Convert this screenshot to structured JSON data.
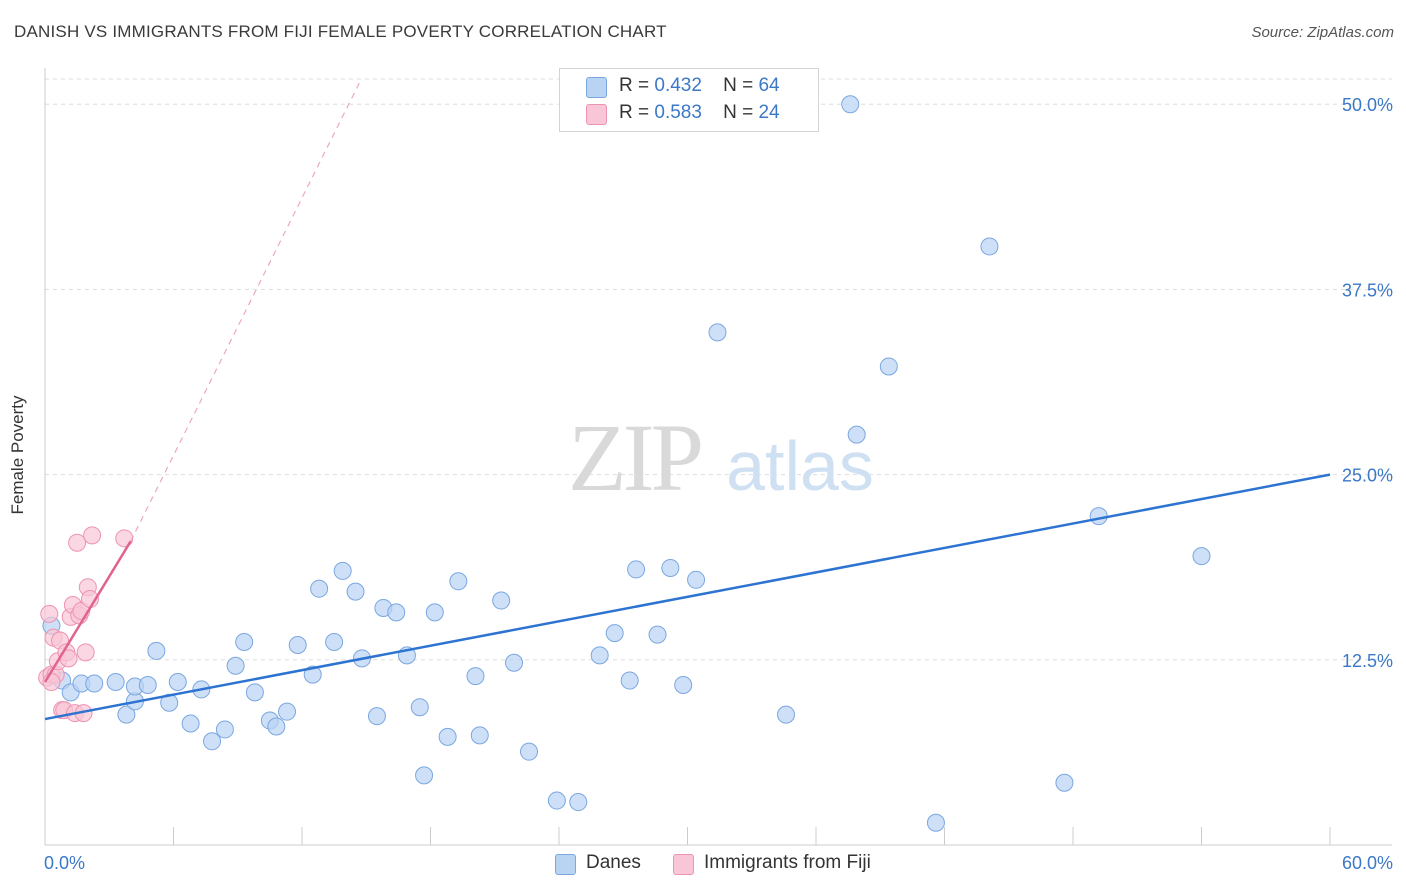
{
  "title": "DANISH VS IMMIGRANTS FROM FIJI FEMALE POVERTY CORRELATION CHART",
  "source": "Source: ZipAtlas.com",
  "watermark": {
    "zip": "ZIP",
    "atlas": "atlas"
  },
  "colors": {
    "danes_fill": "#b9d3f3",
    "danes_stroke": "#7aa7e0",
    "danes_line": "#2d73d2",
    "fiji_fill": "#f8c6d6",
    "fiji_stroke": "#ee93b2",
    "fiji_line": "#e0648f",
    "axis_label": "#3b78c7",
    "grid": "#dddddd"
  },
  "legend": {
    "rows": [
      {
        "r_label": "R =",
        "r_value": "0.432",
        "n_label": "N =",
        "n_value": "64"
      },
      {
        "r_label": "R =",
        "r_value": "0.583",
        "n_label": "N =",
        "n_value": "24"
      }
    ]
  },
  "bottom_legend": {
    "danes": "Danes",
    "fiji": "Immigrants from Fiji"
  },
  "chart_data": {
    "type": "scatter",
    "title": "DANISH VS IMMIGRANTS FROM FIJI FEMALE POVERTY CORRELATION CHART",
    "xlabel": "",
    "ylabel": "Female Poverty",
    "xlim": [
      0,
      60
    ],
    "ylim": [
      0,
      51.5
    ],
    "x_tick_labels": [
      "0.0%",
      "60.0%"
    ],
    "y_ticks": [
      12.5,
      25.0,
      37.5,
      50.0
    ],
    "y_tick_labels": [
      "12.5%",
      "25.0%",
      "37.5%",
      "50.0%"
    ],
    "grid": true,
    "legend_position": "top-center",
    "series": [
      {
        "name": "Danes",
        "r": 0.432,
        "n": 64,
        "trend": {
          "x": [
            0,
            60
          ],
          "y": [
            8.5,
            25.0
          ]
        },
        "points": [
          [
            0.3,
            14.8
          ],
          [
            0.8,
            11.1
          ],
          [
            1.2,
            10.3
          ],
          [
            1.7,
            10.9
          ],
          [
            2.3,
            10.9
          ],
          [
            3.3,
            11.0
          ],
          [
            3.8,
            8.8
          ],
          [
            4.2,
            9.7
          ],
          [
            4.2,
            10.7
          ],
          [
            4.8,
            10.8
          ],
          [
            5.2,
            13.1
          ],
          [
            5.8,
            9.6
          ],
          [
            6.2,
            11.0
          ],
          [
            6.8,
            8.2
          ],
          [
            7.3,
            10.5
          ],
          [
            7.8,
            7.0
          ],
          [
            8.4,
            7.8
          ],
          [
            8.9,
            12.1
          ],
          [
            9.3,
            13.7
          ],
          [
            9.8,
            10.3
          ],
          [
            10.5,
            8.4
          ],
          [
            10.8,
            8.0
          ],
          [
            11.3,
            9.0
          ],
          [
            11.8,
            13.5
          ],
          [
            12.5,
            11.5
          ],
          [
            12.8,
            17.3
          ],
          [
            13.5,
            13.7
          ],
          [
            13.9,
            18.5
          ],
          [
            14.5,
            17.1
          ],
          [
            14.8,
            12.6
          ],
          [
            15.5,
            8.7
          ],
          [
            15.8,
            16.0
          ],
          [
            16.4,
            15.7
          ],
          [
            16.9,
            12.8
          ],
          [
            17.5,
            9.3
          ],
          [
            17.7,
            4.7
          ],
          [
            18.2,
            15.7
          ],
          [
            18.8,
            7.3
          ],
          [
            19.3,
            17.8
          ],
          [
            20.1,
            11.4
          ],
          [
            20.3,
            7.4
          ],
          [
            21.3,
            16.5
          ],
          [
            21.9,
            12.3
          ],
          [
            22.6,
            6.3
          ],
          [
            23.9,
            3.0
          ],
          [
            24.9,
            2.9
          ],
          [
            25.9,
            12.8
          ],
          [
            26.6,
            14.3
          ],
          [
            27.3,
            11.1
          ],
          [
            27.6,
            18.6
          ],
          [
            28.6,
            14.2
          ],
          [
            29.2,
            18.7
          ],
          [
            29.8,
            10.8
          ],
          [
            30.4,
            17.9
          ],
          [
            31.4,
            34.6
          ],
          [
            34.6,
            8.8
          ],
          [
            37.6,
            50.0
          ],
          [
            37.9,
            27.7
          ],
          [
            39.4,
            32.3
          ],
          [
            41.6,
            1.5
          ],
          [
            44.1,
            40.4
          ],
          [
            47.6,
            4.2
          ],
          [
            49.2,
            22.2
          ],
          [
            54.0,
            19.5
          ]
        ]
      },
      {
        "name": "Immigrants from Fiji",
        "r": 0.583,
        "n": 24,
        "trend": {
          "x": [
            0,
            4.0
          ],
          "y": [
            11.0,
            20.5
          ]
        },
        "trend_extension": {
          "x": [
            4.0,
            14.7
          ],
          "y": [
            20.5,
            51.5
          ]
        },
        "points": [
          [
            0.1,
            11.3
          ],
          [
            0.2,
            15.6
          ],
          [
            0.3,
            11.5
          ],
          [
            0.4,
            14.0
          ],
          [
            0.5,
            11.5
          ],
          [
            0.6,
            12.4
          ],
          [
            0.7,
            13.8
          ],
          [
            0.8,
            9.1
          ],
          [
            0.9,
            9.1
          ],
          [
            1.0,
            13.0
          ],
          [
            1.1,
            12.6
          ],
          [
            1.2,
            15.4
          ],
          [
            1.3,
            16.2
          ],
          [
            1.4,
            8.9
          ],
          [
            1.5,
            20.4
          ],
          [
            1.6,
            15.5
          ],
          [
            1.7,
            15.8
          ],
          [
            1.8,
            8.9
          ],
          [
            1.9,
            13.0
          ],
          [
            2.0,
            17.4
          ],
          [
            2.1,
            16.6
          ],
          [
            2.2,
            20.9
          ],
          [
            3.7,
            20.7
          ],
          [
            0.3,
            11.0
          ]
        ]
      }
    ]
  }
}
